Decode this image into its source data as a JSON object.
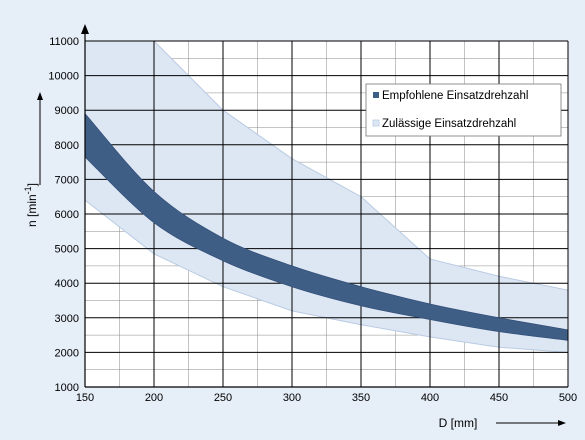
{
  "chart_data": {
    "type": "area",
    "xlabel": "D [mm]",
    "ylabel": "n [min",
    "ylabel_sup": "-1",
    "ylabel_close": "]",
    "xlim": [
      150,
      500
    ],
    "ylim": [
      1000,
      11000
    ],
    "x_ticks": [
      150,
      200,
      250,
      300,
      350,
      400,
      450,
      500
    ],
    "y_ticks": [
      1000,
      2000,
      3000,
      4000,
      5000,
      6000,
      7000,
      8000,
      9000,
      10000,
      11000
    ],
    "x_minor_step": 25,
    "y_minor_step": 500,
    "grid": true,
    "legend_position": "upper-right",
    "colors": {
      "background": "#e6eef8",
      "plot_background": "#ffffff",
      "recommended": "#3f5e85",
      "permissible_fill": "#dde7f4",
      "permissible_edge": "#b9cbe2",
      "grid": "#000000",
      "text": "#000000"
    },
    "series": [
      {
        "name": "Empfohlene Einsatzdrehzahl",
        "x": [
          150,
          200,
          250,
          300,
          350,
          400,
          450,
          500
        ],
        "upper": [
          8900,
          6650,
          5300,
          4500,
          3900,
          3400,
          3000,
          2650
        ],
        "lower": [
          7650,
          5750,
          4650,
          3900,
          3350,
          2950,
          2600,
          2350
        ]
      },
      {
        "name": "Zulässige Einsatzdrehzahl",
        "x": [
          150,
          200,
          250,
          300,
          350,
          400,
          450,
          500
        ],
        "upper": [
          11000,
          11000,
          9000,
          7600,
          6500,
          4700,
          4200,
          3800
        ],
        "lower": [
          6400,
          4850,
          3900,
          3200,
          2800,
          2450,
          2150,
          2000
        ]
      }
    ]
  }
}
